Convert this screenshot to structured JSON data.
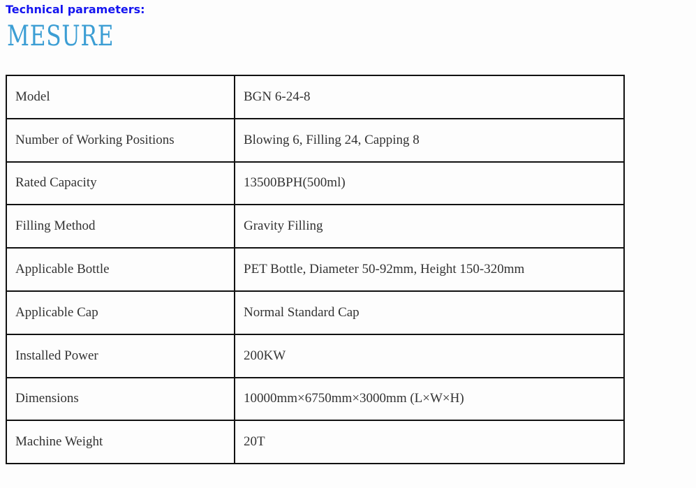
{
  "logo_text": "MESURE",
  "heading": "Technical parameters:",
  "rows": [
    {
      "label": "Model",
      "value": "BGN 6-24-8"
    },
    {
      "label": "Number of Working Positions",
      "value": "Blowing 6, Filling 24, Capping 8"
    },
    {
      "label": "Rated Capacity",
      "value": "13500BPH(500ml)"
    },
    {
      "label": "Filling Method",
      "value": "Gravity Filling"
    },
    {
      "label": "Applicable Bottle",
      "value": "PET Bottle, Diameter 50-92mm, Height 150-320mm"
    },
    {
      "label": "Applicable Cap",
      "value": "Normal Standard Cap"
    },
    {
      "label": "Installed Power",
      "value": "200KW"
    },
    {
      "label": "Dimensions",
      "value": "10000mm×6750mm×3000mm (L×W×H)"
    },
    {
      "label": "Machine Weight",
      "value": "20T"
    }
  ]
}
